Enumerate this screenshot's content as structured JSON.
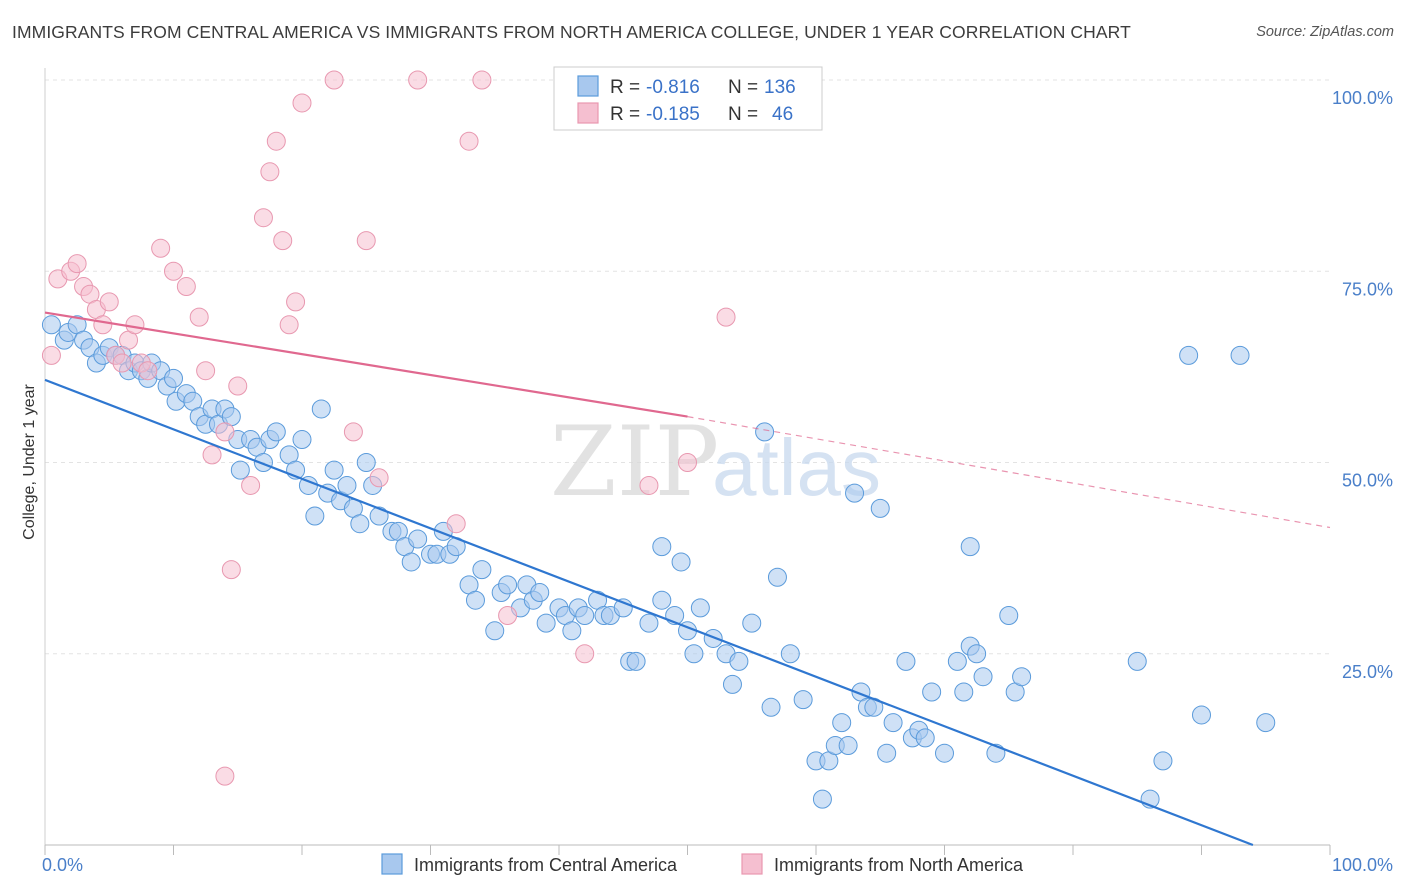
{
  "title": "IMMIGRANTS FROM CENTRAL AMERICA VS IMMIGRANTS FROM NORTH AMERICA COLLEGE, UNDER 1 YEAR CORRELATION CHART",
  "source": "Source: ZipAtlas.com",
  "watermark": {
    "zip": "ZIP",
    "atlas": "atlas"
  },
  "chart_data": {
    "type": "scatter",
    "title": "IMMIGRANTS FROM CENTRAL AMERICA VS IMMIGRANTS FROM NORTH AMERICA COLLEGE, UNDER 1 YEAR CORRELATION CHART",
    "xlabel": "",
    "ylabel": "College, Under 1 year",
    "xlim": [
      0,
      100
    ],
    "ylim": [
      0,
      100
    ],
    "x_tick_labels": [
      "0.0%",
      "100.0%"
    ],
    "y_ticks": [
      25,
      50,
      75,
      100
    ],
    "y_tick_labels": [
      "25.0%",
      "50.0%",
      "75.0%",
      "100.0%"
    ],
    "grid": true,
    "legend_position": "bottom",
    "stats_box_position": "top-center",
    "series": [
      {
        "name": "Immigrants from Central America",
        "color": "#5b9bdb",
        "fill": "#a8c8ee",
        "line_color": "#2f77d0",
        "stats": {
          "r_label": "R = ",
          "r_value": "-0.816",
          "n_label": "N = ",
          "n_value": "136"
        },
        "trend": {
          "x": [
            0,
            94
          ],
          "y": [
            60.8,
            0
          ]
        },
        "points": [
          [
            0.5,
            68
          ],
          [
            1.5,
            66
          ],
          [
            1.8,
            67
          ],
          [
            2.5,
            68
          ],
          [
            3,
            66
          ],
          [
            3.5,
            65
          ],
          [
            4,
            63
          ],
          [
            4.5,
            64
          ],
          [
            5,
            65
          ],
          [
            5.5,
            64
          ],
          [
            6,
            64
          ],
          [
            6.5,
            62
          ],
          [
            7,
            63
          ],
          [
            7.5,
            62
          ],
          [
            8,
            61
          ],
          [
            8.3,
            63
          ],
          [
            9,
            62
          ],
          [
            9.5,
            60
          ],
          [
            10,
            61
          ],
          [
            10.2,
            58
          ],
          [
            11,
            59
          ],
          [
            11.5,
            58
          ],
          [
            12,
            56
          ],
          [
            12.5,
            55
          ],
          [
            13,
            57
          ],
          [
            13.5,
            55
          ],
          [
            14,
            57
          ],
          [
            14.5,
            56
          ],
          [
            15,
            53
          ],
          [
            16,
            53
          ],
          [
            15.2,
            49
          ],
          [
            16.5,
            52
          ],
          [
            17,
            50
          ],
          [
            17.5,
            53
          ],
          [
            18,
            54
          ],
          [
            19,
            51
          ],
          [
            19.5,
            49
          ],
          [
            20,
            53
          ],
          [
            20.5,
            47
          ],
          [
            21,
            43
          ],
          [
            21.5,
            57
          ],
          [
            22,
            46
          ],
          [
            22.5,
            49
          ],
          [
            23,
            45
          ],
          [
            23.5,
            47
          ],
          [
            24,
            44
          ],
          [
            24.5,
            42
          ],
          [
            25,
            50
          ],
          [
            25.5,
            47
          ],
          [
            26,
            43
          ],
          [
            27,
            41
          ],
          [
            27.5,
            41
          ],
          [
            28,
            39
          ],
          [
            28.5,
            37
          ],
          [
            29,
            40
          ],
          [
            30,
            38
          ],
          [
            30.5,
            38
          ],
          [
            31,
            41
          ],
          [
            31.5,
            38
          ],
          [
            32,
            39
          ],
          [
            33,
            34
          ],
          [
            33.5,
            32
          ],
          [
            34,
            36
          ],
          [
            35,
            28
          ],
          [
            35.5,
            33
          ],
          [
            36,
            34
          ],
          [
            37,
            31
          ],
          [
            37.5,
            34
          ],
          [
            38,
            32
          ],
          [
            38.5,
            33
          ],
          [
            39,
            29
          ],
          [
            40,
            31
          ],
          [
            40.5,
            30
          ],
          [
            41,
            28
          ],
          [
            41.5,
            31
          ],
          [
            42,
            30
          ],
          [
            43,
            32
          ],
          [
            43.5,
            30
          ],
          [
            44,
            30
          ],
          [
            45,
            31
          ],
          [
            45.5,
            24
          ],
          [
            46,
            24
          ],
          [
            47,
            29
          ],
          [
            48,
            39
          ],
          [
            48,
            32
          ],
          [
            49,
            30
          ],
          [
            49.5,
            37
          ],
          [
            50,
            28
          ],
          [
            50.5,
            25
          ],
          [
            51,
            31
          ],
          [
            52,
            27
          ],
          [
            53,
            25
          ],
          [
            53.5,
            21
          ],
          [
            54,
            24
          ],
          [
            55,
            29
          ],
          [
            56,
            54
          ],
          [
            56.5,
            18
          ],
          [
            57,
            35
          ],
          [
            58,
            25
          ],
          [
            59,
            19
          ],
          [
            60,
            11
          ],
          [
            60.5,
            6
          ],
          [
            61,
            11
          ],
          [
            61.5,
            13
          ],
          [
            62,
            16
          ],
          [
            62.5,
            13
          ],
          [
            63,
            46
          ],
          [
            63.5,
            20
          ],
          [
            64,
            18
          ],
          [
            64.5,
            18
          ],
          [
            65,
            44
          ],
          [
            65.5,
            12
          ],
          [
            66,
            16
          ],
          [
            67,
            24
          ],
          [
            67.5,
            14
          ],
          [
            68,
            15
          ],
          [
            68.5,
            14
          ],
          [
            69,
            20
          ],
          [
            70,
            12
          ],
          [
            71,
            24
          ],
          [
            71.5,
            20
          ],
          [
            72,
            26
          ],
          [
            72.5,
            25
          ],
          [
            73,
            22
          ],
          [
            74,
            12
          ],
          [
            75,
            30
          ],
          [
            75.5,
            20
          ],
          [
            76,
            22
          ],
          [
            89,
            64
          ],
          [
            93,
            64
          ],
          [
            72,
            39
          ],
          [
            86,
            6
          ],
          [
            87,
            11
          ],
          [
            90,
            17
          ],
          [
            95,
            16
          ],
          [
            85,
            24
          ]
        ]
      },
      {
        "name": "Immigrants from North America",
        "color": "#e898b0",
        "fill": "#f5bfd0",
        "line_color": "#e0688f",
        "stats": {
          "r_label": "R = ",
          "r_value": "-0.185",
          "n_label": "N = ",
          "n_value": "46"
        },
        "trend": {
          "x": [
            0,
            50
          ],
          "y": [
            69.6,
            56.0
          ]
        },
        "trend_dashed": {
          "x": [
            50,
            100
          ],
          "y": [
            56.0,
            41.5
          ]
        },
        "points": [
          [
            0.5,
            64
          ],
          [
            1,
            74
          ],
          [
            2,
            75
          ],
          [
            2.5,
            76
          ],
          [
            3,
            73
          ],
          [
            3.5,
            72
          ],
          [
            4,
            70
          ],
          [
            4.5,
            68
          ],
          [
            5,
            71
          ],
          [
            5.5,
            64
          ],
          [
            6,
            63
          ],
          [
            6.5,
            66
          ],
          [
            7,
            68
          ],
          [
            7.5,
            63
          ],
          [
            8,
            62
          ],
          [
            9,
            78
          ],
          [
            10,
            75
          ],
          [
            11,
            73
          ],
          [
            12,
            69
          ],
          [
            12.5,
            62
          ],
          [
            13,
            51
          ],
          [
            14,
            54
          ],
          [
            14.5,
            36
          ],
          [
            15,
            60
          ],
          [
            16,
            47
          ],
          [
            17,
            82
          ],
          [
            17.5,
            88
          ],
          [
            18,
            92
          ],
          [
            18.5,
            79
          ],
          [
            19,
            68
          ],
          [
            19.5,
            71
          ],
          [
            20,
            97
          ],
          [
            22.5,
            100
          ],
          [
            24,
            54
          ],
          [
            25,
            79
          ],
          [
            26,
            48
          ],
          [
            29,
            100
          ],
          [
            32,
            42
          ],
          [
            33,
            92
          ],
          [
            34,
            100
          ],
          [
            36,
            30
          ],
          [
            42,
            25
          ],
          [
            47,
            47
          ],
          [
            50,
            50
          ],
          [
            53,
            69
          ],
          [
            14,
            9
          ]
        ]
      }
    ]
  }
}
